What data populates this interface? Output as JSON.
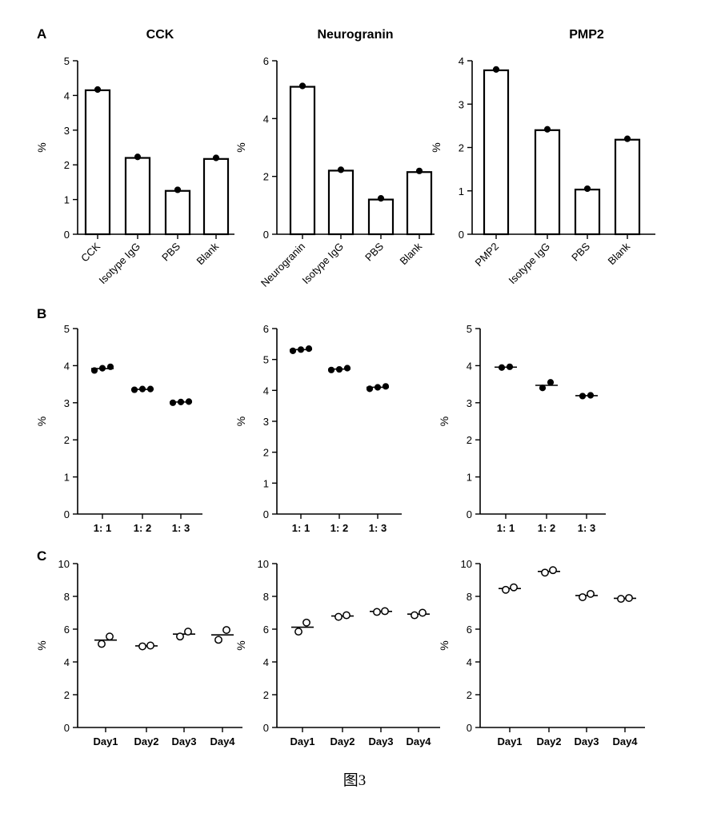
{
  "figure": {
    "caption": "图3",
    "panel_letters": [
      "A",
      "B",
      "C"
    ]
  },
  "chart_data": [
    {
      "id": "A1",
      "type": "bar",
      "title": "CCK",
      "ylabel": "%",
      "ylim": [
        0,
        5
      ],
      "yticks": [
        "0",
        "1",
        "2",
        "3",
        "4",
        "5"
      ],
      "categories": [
        "CCK",
        "Isotype IgG",
        "PBS",
        "Blank"
      ],
      "values": [
        4.15,
        2.2,
        1.25,
        2.17
      ],
      "points": [
        [
          4.17
        ],
        [
          2.23
        ],
        [
          1.28
        ],
        [
          2.2
        ]
      ]
    },
    {
      "id": "A2",
      "type": "bar",
      "title": "Neurogranin",
      "ylabel": "%",
      "ylim": [
        0,
        6
      ],
      "yticks": [
        "0",
        "2",
        "4",
        "6"
      ],
      "categories": [
        "Neurogranin",
        "Isotype IgG",
        "PBS",
        "Blank"
      ],
      "values": [
        5.1,
        2.2,
        1.2,
        2.15
      ],
      "points": [
        [
          5.13
        ],
        [
          2.23
        ],
        [
          1.24
        ],
        [
          2.19
        ]
      ]
    },
    {
      "id": "A3",
      "type": "bar",
      "title": "PMP2",
      "ylabel": "%",
      "ylim": [
        0,
        4
      ],
      "yticks": [
        "0",
        "1",
        "2",
        "3",
        "4"
      ],
      "categories": [
        "PMP2",
        "Isotype IgG",
        "PBS",
        "Blank"
      ],
      "values": [
        3.78,
        2.4,
        1.03,
        2.18
      ],
      "points": [
        [
          3.8
        ],
        [
          2.42
        ],
        [
          1.05
        ],
        [
          2.2
        ]
      ]
    },
    {
      "id": "B1",
      "type": "scatter",
      "ylabel": "%",
      "ylim": [
        0,
        5
      ],
      "yticks": [
        "0",
        "1",
        "2",
        "3",
        "4",
        "5"
      ],
      "categories": [
        "1: 1",
        "1: 2",
        "1: 3"
      ],
      "points": [
        [
          3.87,
          3.93,
          3.97
        ],
        [
          3.35,
          3.37,
          3.37
        ],
        [
          3.0,
          3.02,
          3.03
        ]
      ],
      "means": [
        3.92,
        3.36,
        3.02
      ],
      "marker": "filled"
    },
    {
      "id": "B2",
      "type": "scatter",
      "ylabel": "%",
      "ylim": [
        0,
        6
      ],
      "yticks": [
        "0",
        "1",
        "2",
        "3",
        "4",
        "5",
        "6"
      ],
      "categories": [
        "1: 1",
        "1: 2",
        "1: 3"
      ],
      "points": [
        [
          5.28,
          5.32,
          5.35
        ],
        [
          4.66,
          4.68,
          4.72
        ],
        [
          4.05,
          4.1,
          4.13
        ]
      ],
      "means": [
        5.32,
        4.69,
        4.1
      ],
      "marker": "filled"
    },
    {
      "id": "B3",
      "type": "scatter",
      "ylabel": "%",
      "ylim": [
        0,
        5
      ],
      "yticks": [
        "0",
        "1",
        "2",
        "3",
        "4",
        "5"
      ],
      "categories": [
        "1: 1",
        "1: 2",
        "1: 3"
      ],
      "points": [
        [
          3.95,
          3.97
        ],
        [
          3.4,
          3.55
        ],
        [
          3.18,
          3.2
        ]
      ],
      "means": [
        3.96,
        3.47,
        3.19
      ],
      "marker": "filled"
    },
    {
      "id": "C1",
      "type": "scatter",
      "ylabel": "%",
      "ylim": [
        0,
        10
      ],
      "yticks": [
        "0",
        "2",
        "4",
        "6",
        "8",
        "10"
      ],
      "categories": [
        "Day1",
        "Day2",
        "Day3",
        "Day4"
      ],
      "points": [
        [
          5.1,
          5.55
        ],
        [
          4.95,
          5.0
        ],
        [
          5.55,
          5.85
        ],
        [
          5.35,
          5.95
        ]
      ],
      "means": [
        5.33,
        4.98,
        5.7,
        5.65
      ],
      "marker": "open"
    },
    {
      "id": "C2",
      "type": "scatter",
      "ylabel": "%",
      "ylim": [
        0,
        10
      ],
      "yticks": [
        "0",
        "2",
        "4",
        "6",
        "8",
        "10"
      ],
      "categories": [
        "Day1",
        "Day2",
        "Day3",
        "Day4"
      ],
      "points": [
        [
          5.85,
          6.4
        ],
        [
          6.75,
          6.85
        ],
        [
          7.05,
          7.1
        ],
        [
          6.85,
          7.0
        ]
      ],
      "means": [
        6.12,
        6.8,
        7.08,
        6.92
      ],
      "marker": "open"
    },
    {
      "id": "C3",
      "type": "scatter",
      "ylabel": "%",
      "ylim": [
        0,
        10
      ],
      "yticks": [
        "0",
        "2",
        "4",
        "6",
        "8",
        "10"
      ],
      "categories": [
        "Day1",
        "Day2",
        "Day3",
        "Day4"
      ],
      "points": [
        [
          8.4,
          8.55
        ],
        [
          9.45,
          9.6
        ],
        [
          7.95,
          8.15
        ],
        [
          7.85,
          7.9
        ]
      ],
      "means": [
        8.48,
        9.52,
        8.05,
        7.88
      ],
      "marker": "open"
    }
  ]
}
